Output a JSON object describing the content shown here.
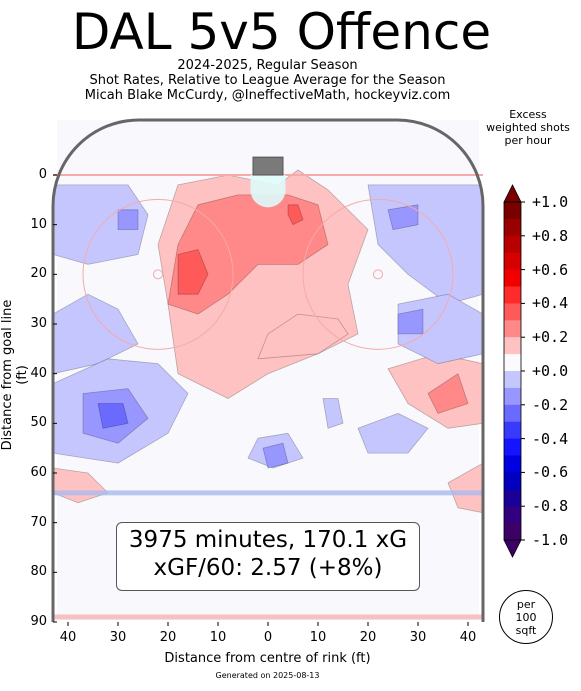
{
  "header": {
    "title": "DAL 5v5 Offence",
    "line1": "2024-2025, Regular Season",
    "line2": "Shot Rates, Relative to League Average for the Season",
    "line3": "Micah Blake McCurdy, @IneffectiveMath, hockeyviz.com"
  },
  "info": {
    "line1": "3975 minutes, 170.1 xG",
    "line2": "xGF/60: 2.57 (+8%)"
  },
  "per_area": [
    "per",
    "100",
    "sqft"
  ],
  "footer": "Generated on 2025-08-13",
  "colors": {
    "positive": "#ff0000",
    "negative": "#0000ff",
    "rink_line": "#666666",
    "goal_line": "#f4aaaa",
    "blue_line": "#aabbee"
  },
  "chart_data": {
    "type": "heatmap",
    "xlabel": "Distance from centre of rink (ft)",
    "ylabel": "Distance from goal line (ft)",
    "xlim": [
      -43,
      43
    ],
    "ylim": [
      90,
      -12
    ],
    "x_ticks": [
      "40",
      "30",
      "20",
      "10",
      "0",
      "10",
      "20",
      "30",
      "40"
    ],
    "x_tick_values": [
      -40,
      -30,
      -20,
      -10,
      0,
      10,
      20,
      30,
      40
    ],
    "y_ticks": [
      0,
      10,
      20,
      30,
      40,
      50,
      60,
      70,
      80,
      90
    ],
    "colorbar": {
      "title": [
        "Excess",
        "weighted shots",
        "per hour"
      ],
      "ticks": [
        "+1.0",
        "+0.8",
        "+0.6",
        "+0.4",
        "+0.2",
        "+0.0",
        "-0.2",
        "-0.4",
        "-0.6",
        "-0.8",
        "-1.0"
      ],
      "range": [
        -1.0,
        1.0
      ],
      "levels": [
        {
          "value": 1.0,
          "color": "#7a0000"
        },
        {
          "value": 0.9,
          "color": "#990000"
        },
        {
          "value": 0.8,
          "color": "#b80000"
        },
        {
          "value": 0.7,
          "color": "#d60000"
        },
        {
          "value": 0.6,
          "color": "#f20000"
        },
        {
          "value": 0.5,
          "color": "#ff2a2a"
        },
        {
          "value": 0.4,
          "color": "#ff5a5a"
        },
        {
          "value": 0.3,
          "color": "#ff8888"
        },
        {
          "value": 0.2,
          "color": "#ffc2c2"
        },
        {
          "value": 0.1,
          "color": "#fbfbff"
        },
        {
          "value": -0.1,
          "color": "#c6c6ff"
        },
        {
          "value": -0.2,
          "color": "#9797ff"
        },
        {
          "value": -0.3,
          "color": "#6a6aff"
        },
        {
          "value": -0.4,
          "color": "#3a3aff"
        },
        {
          "value": -0.5,
          "color": "#1414ff"
        },
        {
          "value": -0.6,
          "color": "#0000e0"
        },
        {
          "value": -0.7,
          "color": "#0000be"
        },
        {
          "value": -0.8,
          "color": "#1a0099"
        },
        {
          "value": -0.9,
          "color": "#300080"
        },
        {
          "value": -1.0,
          "color": "#3d0066"
        }
      ]
    },
    "regions": [
      {
        "value": 0.2,
        "points": [
          [
            -18,
            2
          ],
          [
            -8,
            0
          ],
          [
            2,
            2
          ],
          [
            6,
            -1
          ],
          [
            12,
            3
          ],
          [
            20,
            11
          ],
          [
            16,
            22
          ],
          [
            18,
            32
          ],
          [
            10,
            36
          ],
          [
            0,
            40
          ],
          [
            -8,
            45
          ],
          [
            -18,
            40
          ],
          [
            -20,
            26
          ],
          [
            -22,
            14
          ]
        ]
      },
      {
        "value": 0.3,
        "points": [
          [
            -14,
            6
          ],
          [
            -6,
            4
          ],
          [
            4,
            4
          ],
          [
            10,
            6
          ],
          [
            12,
            14
          ],
          [
            6,
            18
          ],
          [
            -2,
            18
          ],
          [
            -8,
            24
          ],
          [
            -14,
            28
          ],
          [
            -20,
            26
          ],
          [
            -18,
            14
          ]
        ]
      },
      {
        "value": 0.4,
        "points": [
          [
            -18,
            16
          ],
          [
            -14,
            15
          ],
          [
            -12,
            20
          ],
          [
            -14,
            24
          ],
          [
            -18,
            24
          ]
        ]
      },
      {
        "value": 0.4,
        "points": [
          [
            4,
            6
          ],
          [
            6,
            6
          ],
          [
            7,
            9
          ],
          [
            5,
            10
          ],
          [
            4,
            8
          ]
        ]
      },
      {
        "value": 0.2,
        "points": [
          [
            0,
            32
          ],
          [
            6,
            28
          ],
          [
            14,
            29
          ],
          [
            16,
            32
          ],
          [
            10,
            36
          ],
          [
            -2,
            37
          ]
        ]
      },
      {
        "value": 0.2,
        "points": [
          [
            24,
            39
          ],
          [
            34,
            36
          ],
          [
            43,
            38
          ],
          [
            43,
            50
          ],
          [
            36,
            51
          ],
          [
            28,
            46
          ]
        ]
      },
      {
        "value": 0.3,
        "points": [
          [
            32,
            44
          ],
          [
            38,
            40
          ],
          [
            40,
            46
          ],
          [
            34,
            48
          ]
        ]
      },
      {
        "value": 0.2,
        "points": [
          [
            -43,
            59
          ],
          [
            -36,
            60
          ],
          [
            -32,
            64
          ],
          [
            -38,
            66
          ],
          [
            -43,
            64
          ]
        ]
      },
      {
        "value": 0.2,
        "points": [
          [
            36,
            62
          ],
          [
            43,
            58
          ],
          [
            43,
            68
          ],
          [
            38,
            67
          ]
        ]
      },
      {
        "value": -0.1,
        "points": [
          [
            -43,
            2
          ],
          [
            -28,
            2
          ],
          [
            -24,
            8
          ],
          [
            -26,
            16
          ],
          [
            -36,
            18
          ],
          [
            -43,
            16
          ]
        ]
      },
      {
        "value": -0.1,
        "points": [
          [
            -43,
            28
          ],
          [
            -36,
            24
          ],
          [
            -30,
            27
          ],
          [
            -26,
            34
          ],
          [
            -34,
            38
          ],
          [
            -43,
            40
          ]
        ]
      },
      {
        "value": -0.1,
        "points": [
          [
            -43,
            42
          ],
          [
            -32,
            37
          ],
          [
            -22,
            38
          ],
          [
            -16,
            44
          ],
          [
            -20,
            52
          ],
          [
            -30,
            58
          ],
          [
            -43,
            56
          ]
        ]
      },
      {
        "value": -0.2,
        "points": [
          [
            -37,
            44
          ],
          [
            -28,
            43
          ],
          [
            -24,
            49
          ],
          [
            -30,
            54
          ],
          [
            -37,
            52
          ]
        ]
      },
      {
        "value": -0.3,
        "points": [
          [
            -34,
            46
          ],
          [
            -29,
            46
          ],
          [
            -28,
            50
          ],
          [
            -33,
            51
          ]
        ]
      },
      {
        "value": -0.2,
        "points": [
          [
            -30,
            7
          ],
          [
            -26,
            7
          ],
          [
            -26,
            11
          ],
          [
            -30,
            11
          ]
        ]
      },
      {
        "value": -0.1,
        "points": [
          [
            20,
            2
          ],
          [
            43,
            2
          ],
          [
            43,
            24
          ],
          [
            36,
            26
          ],
          [
            28,
            20
          ],
          [
            22,
            14
          ]
        ]
      },
      {
        "value": -0.2,
        "points": [
          [
            24,
            7
          ],
          [
            30,
            6
          ],
          [
            30,
            10
          ],
          [
            25,
            11
          ]
        ]
      },
      {
        "value": -0.1,
        "points": [
          [
            26,
            26
          ],
          [
            36,
            24
          ],
          [
            43,
            28
          ],
          [
            43,
            36
          ],
          [
            34,
            38
          ],
          [
            26,
            34
          ]
        ]
      },
      {
        "value": -0.2,
        "points": [
          [
            26,
            28
          ],
          [
            31,
            27
          ],
          [
            31,
            32
          ],
          [
            26,
            32
          ]
        ]
      },
      {
        "value": -0.1,
        "points": [
          [
            18,
            51
          ],
          [
            26,
            48
          ],
          [
            32,
            51
          ],
          [
            28,
            56
          ],
          [
            20,
            56
          ]
        ]
      },
      {
        "value": -0.1,
        "points": [
          [
            11,
            45
          ],
          [
            14,
            45
          ],
          [
            15,
            50
          ],
          [
            12,
            51
          ]
        ]
      },
      {
        "value": -0.1,
        "points": [
          [
            -2,
            53
          ],
          [
            4,
            52
          ],
          [
            7,
            57
          ],
          [
            1,
            59
          ],
          [
            -4,
            57
          ]
        ]
      },
      {
        "value": -0.2,
        "points": [
          [
            -1,
            55
          ],
          [
            3,
            54
          ],
          [
            4,
            58
          ],
          [
            0,
            59
          ]
        ]
      }
    ]
  }
}
